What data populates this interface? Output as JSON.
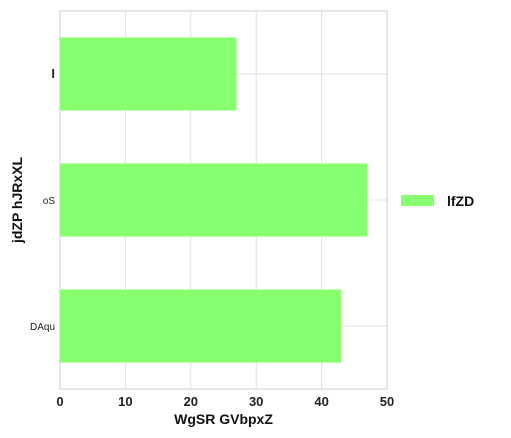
{
  "chart_data": {
    "type": "bar",
    "orientation": "horizontal",
    "categories": [
      "I",
      "oS",
      "DAqu"
    ],
    "series": [
      {
        "name": "lfZD",
        "values": [
          27,
          47,
          43
        ],
        "color": "#88ff6e"
      }
    ],
    "xlabel": "WgSR GVbpxZ",
    "ylabel": "jdZP hJRxXL",
    "xlim": [
      0,
      50
    ],
    "xticks": [
      0,
      10,
      20,
      30,
      40,
      50
    ],
    "grid": true,
    "legend_position": "right"
  }
}
